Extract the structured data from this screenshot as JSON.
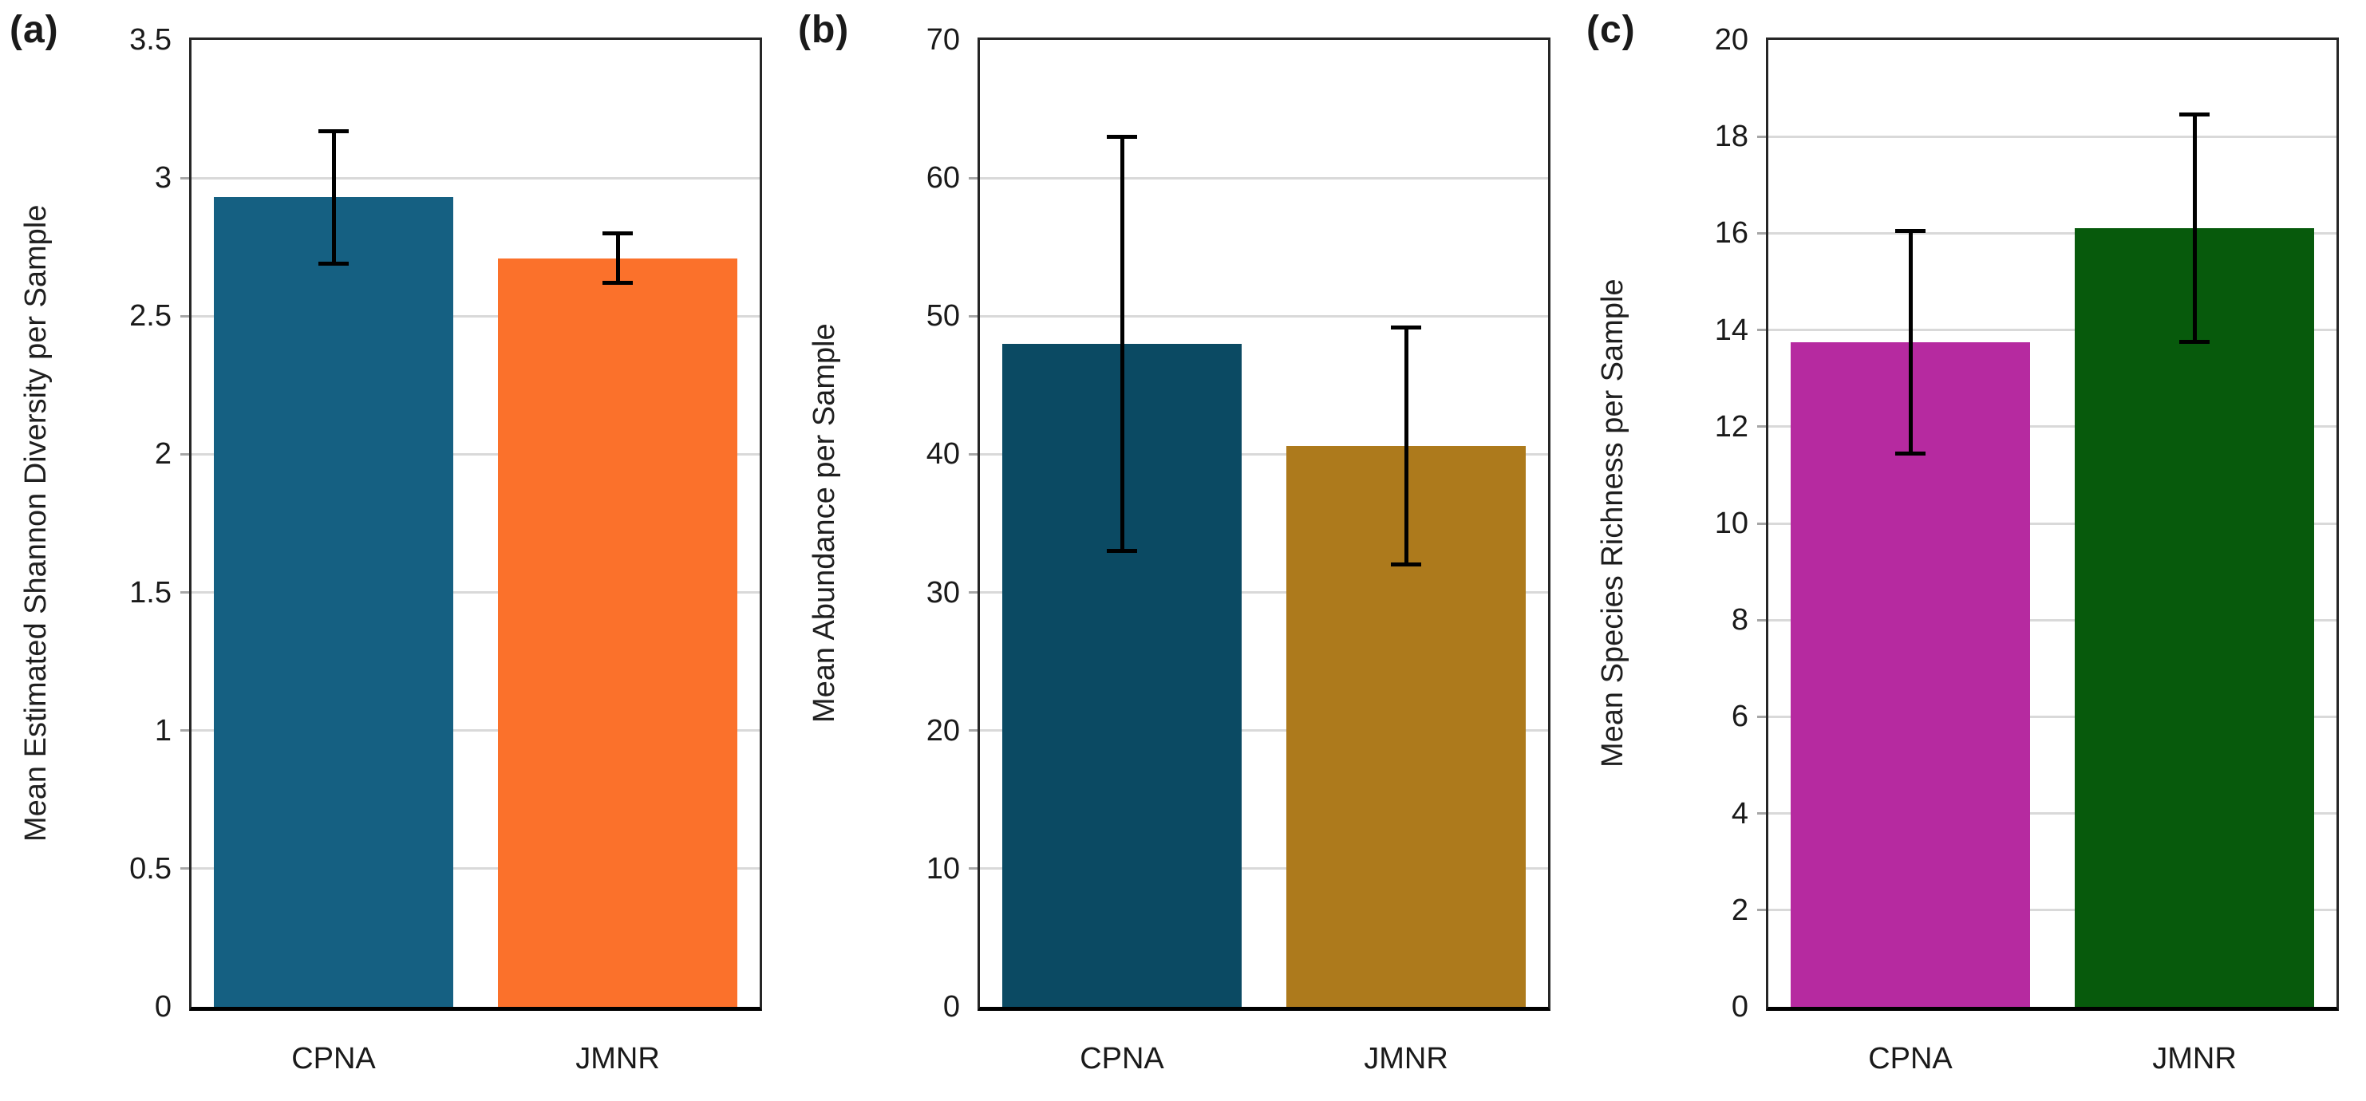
{
  "figure": {
    "background": "#FFFFFF",
    "text_color": "#1A1A1A",
    "gridline_color": "#D9D9D9",
    "axis_border_color": "#262626",
    "error_bar_color": "#000000"
  },
  "chart_data": [
    {
      "type": "bar",
      "panel_label": "(a)",
      "title": "",
      "xlabel": "",
      "ylabel": "Mean Estimated Shannon Diversity per Sample",
      "categories": [
        "CPNA",
        "JMNR"
      ],
      "values": [
        2.93,
        2.71
      ],
      "error_bars": [
        0.24,
        0.09
      ],
      "bar_colors": [
        "#156082",
        "#FB712B"
      ],
      "ylim": [
        0,
        3.5
      ],
      "ytick_step": 0.5,
      "ytick_labels": [
        "0",
        "0.5",
        "1",
        "1.5",
        "2",
        "2.5",
        "3",
        "3.5"
      ],
      "grid": true,
      "legend": false
    },
    {
      "type": "bar",
      "panel_label": "(b)",
      "title": "",
      "xlabel": "",
      "ylabel": "Mean Abundance per Sample",
      "categories": [
        "CPNA",
        "JMNR"
      ],
      "values": [
        48.0,
        40.6
      ],
      "error_bars": [
        15.0,
        8.6
      ],
      "bar_colors": [
        "#0B4A63",
        "#AD7A1C"
      ],
      "ylim": [
        0,
        70
      ],
      "ytick_step": 10,
      "ytick_labels": [
        "0",
        "10",
        "20",
        "30",
        "40",
        "50",
        "60",
        "70"
      ],
      "grid": true,
      "legend": false
    },
    {
      "type": "bar",
      "panel_label": "(c)",
      "title": "",
      "xlabel": "",
      "ylabel": "Mean Species Richness per Sample",
      "categories": [
        "CPNA",
        "JMNR"
      ],
      "values": [
        13.75,
        16.1
      ],
      "error_bars": [
        2.3,
        2.35
      ],
      "bar_colors": [
        "#B62AA0",
        "#075A0C"
      ],
      "ylim": [
        0,
        20
      ],
      "ytick_step": 2,
      "ytick_labels": [
        "0",
        "2",
        "4",
        "6",
        "8",
        "10",
        "12",
        "14",
        "16",
        "18",
        "20"
      ],
      "grid": true,
      "legend": false
    }
  ]
}
